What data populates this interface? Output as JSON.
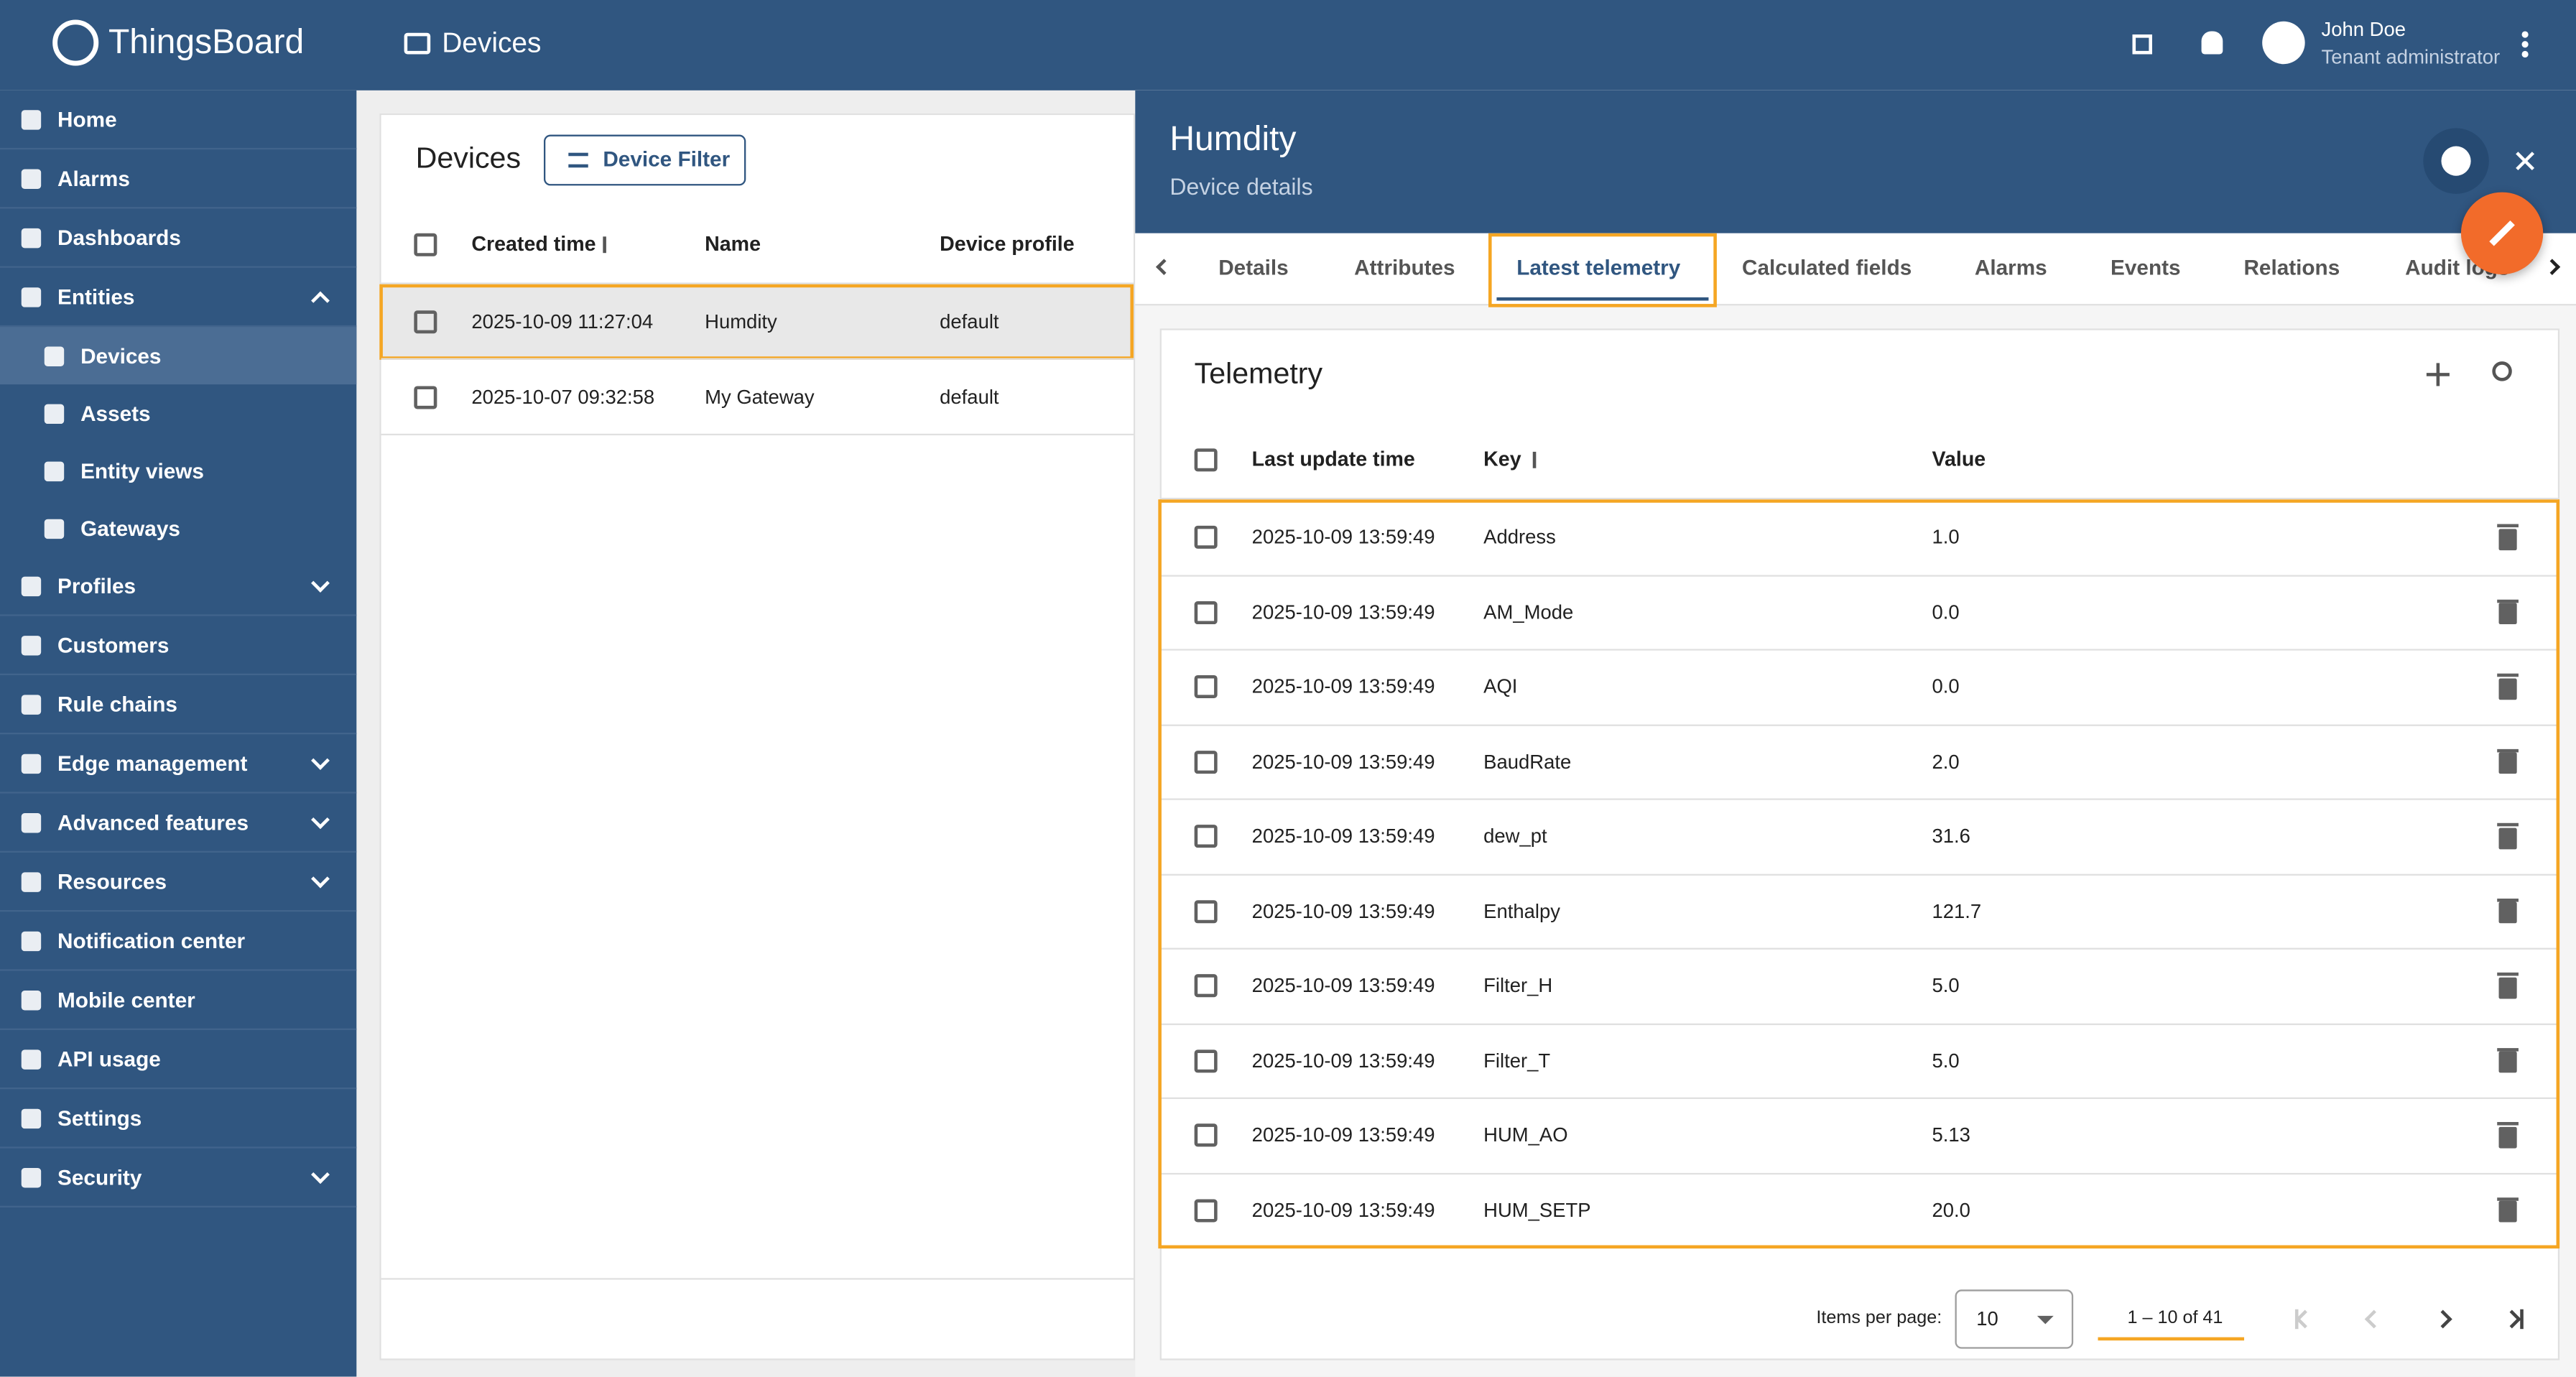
{
  "header": {
    "app": "ThingsBoard",
    "page": "Devices",
    "user_name": "John Doe",
    "user_role": "Tenant administrator"
  },
  "sidebar": [
    {
      "label": "Home"
    },
    {
      "label": "Alarms"
    },
    {
      "label": "Dashboards"
    },
    {
      "label": "Entities",
      "expandable": true,
      "expanded": true,
      "children": [
        {
          "label": "Devices",
          "selected": true
        },
        {
          "label": "Assets"
        },
        {
          "label": "Entity views"
        },
        {
          "label": "Gateways"
        }
      ]
    },
    {
      "label": "Profiles",
      "expandable": true
    },
    {
      "label": "Customers"
    },
    {
      "label": "Rule chains"
    },
    {
      "label": "Edge management",
      "expandable": true
    },
    {
      "label": "Advanced features",
      "expandable": true
    },
    {
      "label": "Resources",
      "expandable": true
    },
    {
      "label": "Notification center"
    },
    {
      "label": "Mobile center"
    },
    {
      "label": "API usage"
    },
    {
      "label": "Settings"
    },
    {
      "label": "Security",
      "expandable": true
    }
  ],
  "devices": {
    "title": "Devices",
    "filter_button": "Device Filter",
    "columns": [
      "Created time",
      "Name",
      "Device profile"
    ],
    "rows": [
      [
        "2025-10-09 11:27:04",
        "Humdity",
        "default"
      ],
      [
        "2025-10-07 09:32:58",
        "My Gateway",
        "default"
      ]
    ]
  },
  "details": {
    "title": "Humdity",
    "subtitle": "Device details",
    "tabs": [
      "Details",
      "Attributes",
      "Latest telemetry",
      "Calculated fields",
      "Alarms",
      "Events",
      "Relations",
      "Audit logs"
    ],
    "active_tab": 2,
    "telemetry": {
      "title": "Telemetry",
      "columns": [
        "Last update time",
        "Key",
        "Value"
      ],
      "rows": [
        [
          "2025-10-09 13:59:49",
          "Address",
          "1.0"
        ],
        [
          "2025-10-09 13:59:49",
          "AM_Mode",
          "0.0"
        ],
        [
          "2025-10-09 13:59:49",
          "AQI",
          "0.0"
        ],
        [
          "2025-10-09 13:59:49",
          "BaudRate",
          "2.0"
        ],
        [
          "2025-10-09 13:59:49",
          "dew_pt",
          "31.6"
        ],
        [
          "2025-10-09 13:59:49",
          "Enthalpy",
          "121.7"
        ],
        [
          "2025-10-09 13:59:49",
          "Filter_H",
          "5.0"
        ],
        [
          "2025-10-09 13:59:49",
          "Filter_T",
          "5.0"
        ],
        [
          "2025-10-09 13:59:49",
          "HUM_AO",
          "5.13"
        ],
        [
          "2025-10-09 13:59:49",
          "HUM_SETP",
          "20.0"
        ]
      ],
      "pagination": {
        "items_per_page_label": "Items per page:",
        "items_per_page": "10",
        "range": "1 – 10 of 41"
      }
    }
  }
}
